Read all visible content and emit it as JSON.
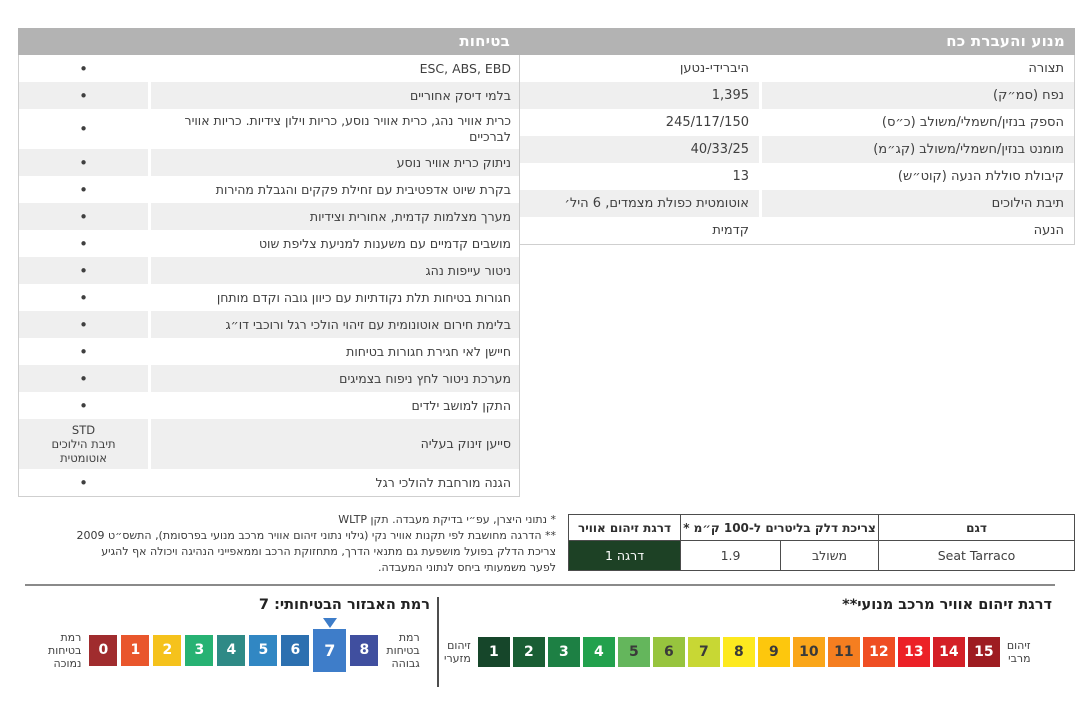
{
  "engine_table": {
    "title": "מנוע והעברת כח",
    "rows": [
      {
        "label": "תצורה",
        "value": "היברידי-נטען"
      },
      {
        "label": "נפח (סמ״ק)",
        "value": "1,395"
      },
      {
        "label": "הספק בנזין/חשמלי/משולב (כ״ס)",
        "value": "245/117/150"
      },
      {
        "label": "מומנט בנזין/חשמלי/משולב (קג״מ)",
        "value": "40/33/25"
      },
      {
        "label": "קיבולת סוללת הנעה (קוט״ש)",
        "value": "13"
      },
      {
        "label": "תיבת הילוכים",
        "value": "אוטומטית כפולת מצמדים, 6 היל׳"
      },
      {
        "label": "הנעה",
        "value": "קדמית"
      }
    ]
  },
  "safety_table": {
    "title": "בטיחות",
    "bullet_glyph": "•",
    "rows": [
      {
        "feature": "ESC, ABS, EBD",
        "status": "•"
      },
      {
        "feature": "בלמי דיסק אחוריים",
        "status": "•"
      },
      {
        "feature": "כרית אוויר נהג, כרית אוויר נוסע, כריות וילון צידיות. כריות אוויר לברכיים",
        "status": "•"
      },
      {
        "feature": "ניתוק כרית אוויר נוסע",
        "status": "•"
      },
      {
        "feature": "בקרת שיוט אדפטיבית עם זחילת פקקים והגבלת מהירות",
        "status": "•"
      },
      {
        "feature": "מערך מצלמות קדמית, אחורית וצידיות",
        "status": "•"
      },
      {
        "feature": "מושבים קדמיים עם משענות למניעת צליפת שוט",
        "status": "•"
      },
      {
        "feature": "ניטור עייפות נהג",
        "status": "•"
      },
      {
        "feature": "חגורות בטיחות תלת נקודתיות עם כיוון גובה וקדם מותחן",
        "status": "•"
      },
      {
        "feature": "בלימת חירום אוטונומית עם זיהוי הולכי רגל ורוכבי דו״ג",
        "status": "•"
      },
      {
        "feature": "חיישן לאי חגירת חגורות בטיחות",
        "status": "•"
      },
      {
        "feature": "מערכת ניטור לחץ ניפוח בצמיגים",
        "status": "•"
      },
      {
        "feature": "התקן למושב ילדים",
        "status": "•"
      },
      {
        "feature": "סייען זינוק בעליה",
        "status": "STD\nתיבת הילוכים\nאוטומטית"
      },
      {
        "feature": "הגנה מורחבת להולכי רגל",
        "status": "•"
      }
    ]
  },
  "footnotes": {
    "lines": [
      "* נתוני היצרן, עפ״י בדיקת מעבדה. תקן WLTP",
      "** הדרגה מחושבת לפי תקנות אוויר נקי (גילוי נתוני זיהום אוויר מרכב מנועי בפרסומת), התשס״ט 2009",
      "צריכת הדלק בפועל מושפעת גם מתנאי הדרך, מתחזוקת הרכב וממאפייני הנהיגה ויכולה אף להגיע",
      "לפער משמעותי ביחס לנתוני המעבדה."
    ]
  },
  "fuel_table": {
    "headers": {
      "model": "דגם",
      "consumption": "צריכת דלק בליטרים ל-100 ק״מ *",
      "pollution": "דרגת זיהום אוויר"
    },
    "row": {
      "model": "Seat Tarraco",
      "mode": "משולב",
      "value": "1.9",
      "grade": "דרגה 1"
    },
    "grade_bg": "#1d4125"
  },
  "pollution_scale": {
    "title": "דרגת זיהום אוויר מרכב מנועי**",
    "min_label": "זיהום\nמזערי",
    "max_label": "זיהום\nמרבי",
    "boxes": [
      {
        "n": "1",
        "bg": "#16462a",
        "fg": "#ffffff"
      },
      {
        "n": "2",
        "bg": "#1a5e34",
        "fg": "#ffffff"
      },
      {
        "n": "3",
        "bg": "#1d8044",
        "fg": "#ffffff"
      },
      {
        "n": "4",
        "bg": "#22a14d",
        "fg": "#ffffff"
      },
      {
        "n": "5",
        "bg": "#64b65c",
        "fg": "#3a3a3a"
      },
      {
        "n": "6",
        "bg": "#97c43e",
        "fg": "#3a3a3a"
      },
      {
        "n": "7",
        "bg": "#c8d734",
        "fg": "#3a3a3a"
      },
      {
        "n": "8",
        "bg": "#fde91f",
        "fg": "#3a3a3a"
      },
      {
        "n": "9",
        "bg": "#fdc70d",
        "fg": "#3a3a3a"
      },
      {
        "n": "10",
        "bg": "#faa61a",
        "fg": "#3a3a3a"
      },
      {
        "n": "11",
        "bg": "#f57e20",
        "fg": "#3a3a3a"
      },
      {
        "n": "12",
        "bg": "#ef4e23",
        "fg": "#ffffff"
      },
      {
        "n": "13",
        "bg": "#ec2127",
        "fg": "#ffffff"
      },
      {
        "n": "14",
        "bg": "#d41f26",
        "fg": "#ffffff"
      },
      {
        "n": "15",
        "bg": "#9e1c21",
        "fg": "#ffffff"
      }
    ]
  },
  "safety_scale": {
    "title": "רמת האבזור הבטיחותי: 7",
    "selected_level": "7",
    "low_label": "רמת\nבטיחות\nנמוכה",
    "high_label": "רמת\nבטיחות\nגבוהה",
    "marker_color": "#3e7dc9",
    "boxes": [
      {
        "n": "0",
        "bg": "#a02c2e",
        "fg": "#ffffff"
      },
      {
        "n": "1",
        "bg": "#e9562c",
        "fg": "#ffffff"
      },
      {
        "n": "2",
        "bg": "#f5c21c",
        "fg": "#ffffff"
      },
      {
        "n": "3",
        "bg": "#27b273",
        "fg": "#ffffff"
      },
      {
        "n": "4",
        "bg": "#2f8a86",
        "fg": "#ffffff"
      },
      {
        "n": "5",
        "bg": "#3187c3",
        "fg": "#ffffff"
      },
      {
        "n": "6",
        "bg": "#2c70b0",
        "fg": "#ffffff"
      },
      {
        "n": "7",
        "bg": "#3e7dc9",
        "fg": "#ffffff"
      },
      {
        "n": "8",
        "bg": "#404f9f",
        "fg": "#ffffff"
      }
    ]
  }
}
